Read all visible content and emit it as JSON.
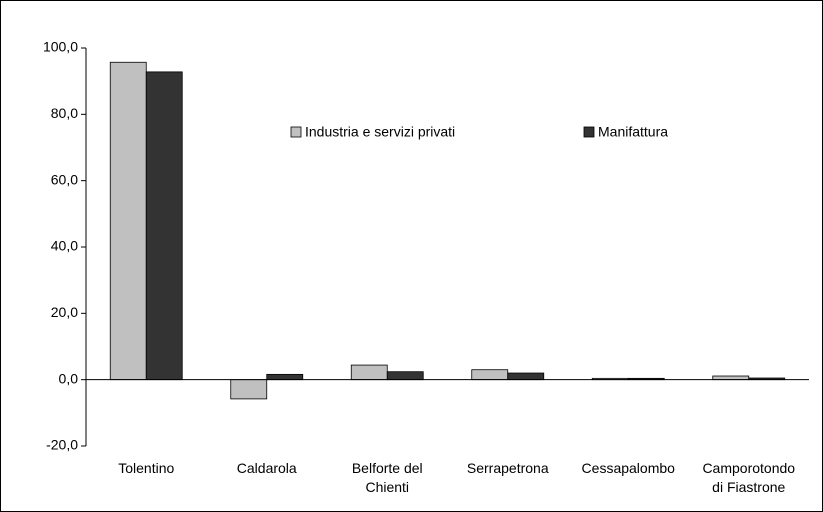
{
  "chart_data": {
    "type": "bar",
    "categories": [
      "Tolentino",
      "Caldarola",
      "Belforte del Chienti",
      "Serrapetrona",
      "Cessapalombo",
      "Camporotondo di Fiastrone"
    ],
    "series": [
      {
        "name": "Industria e servizi privati",
        "color": "#c0c0c0",
        "values": [
          95.7,
          -5.8,
          4.4,
          3.0,
          0.4,
          1.1
        ]
      },
      {
        "name": "Manifattura",
        "color": "#333333",
        "values": [
          92.8,
          1.6,
          2.4,
          2.0,
          0.4,
          0.5
        ]
      }
    ],
    "ylim": [
      -20,
      100
    ],
    "yticks": [
      {
        "value": -20,
        "label": "-20,0"
      },
      {
        "value": 0,
        "label": "0,0"
      },
      {
        "value": 20,
        "label": "20,0"
      },
      {
        "value": 40,
        "label": "40,0"
      },
      {
        "value": 60,
        "label": "60,0"
      },
      {
        "value": 80,
        "label": "80,0"
      },
      {
        "value": 100,
        "label": "100,0"
      }
    ],
    "grid": false
  }
}
